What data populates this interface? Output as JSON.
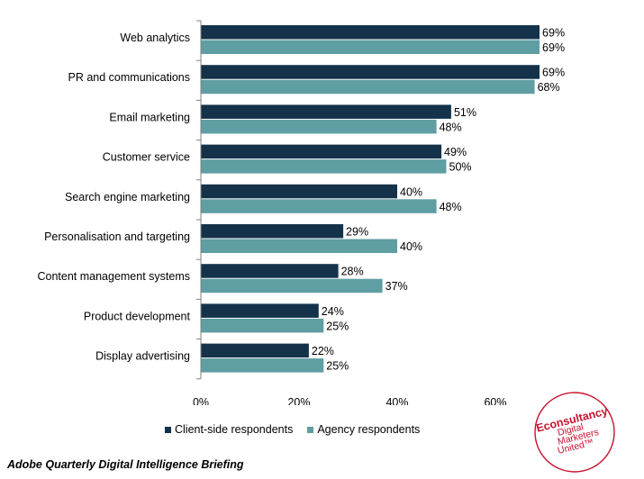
{
  "chart_data": {
    "type": "bar",
    "orientation": "horizontal",
    "title": "",
    "xlabel": "",
    "ylabel": "",
    "xlim": [
      0,
      75
    ],
    "x_ticks": [
      "0%",
      "20%",
      "40%",
      "60%"
    ],
    "x_tick_values": [
      0,
      20,
      40,
      60
    ],
    "grid": false,
    "legend_position": "bottom",
    "categories": [
      "Web analytics",
      "PR and communications",
      "Email marketing",
      "Customer service",
      "Search engine marketing",
      "Personalisation and targeting",
      "Content management systems",
      "Product development",
      "Display advertising"
    ],
    "series": [
      {
        "name": "Client-side respondents",
        "color": "#14324a",
        "values": [
          69,
          69,
          51,
          49,
          40,
          29,
          28,
          24,
          22
        ]
      },
      {
        "name": "Agency respondents",
        "color": "#5f9ea3",
        "values": [
          69,
          68,
          48,
          50,
          48,
          40,
          37,
          25,
          25
        ]
      }
    ],
    "value_suffix": "%"
  },
  "footer": {
    "source": "Adobe Quarterly Digital Intelligence Briefing"
  },
  "logo": {
    "brand": "Econsultancy",
    "tagline_lines": [
      "Digital",
      "Marketers",
      "United™"
    ],
    "color": "#c8102e"
  }
}
